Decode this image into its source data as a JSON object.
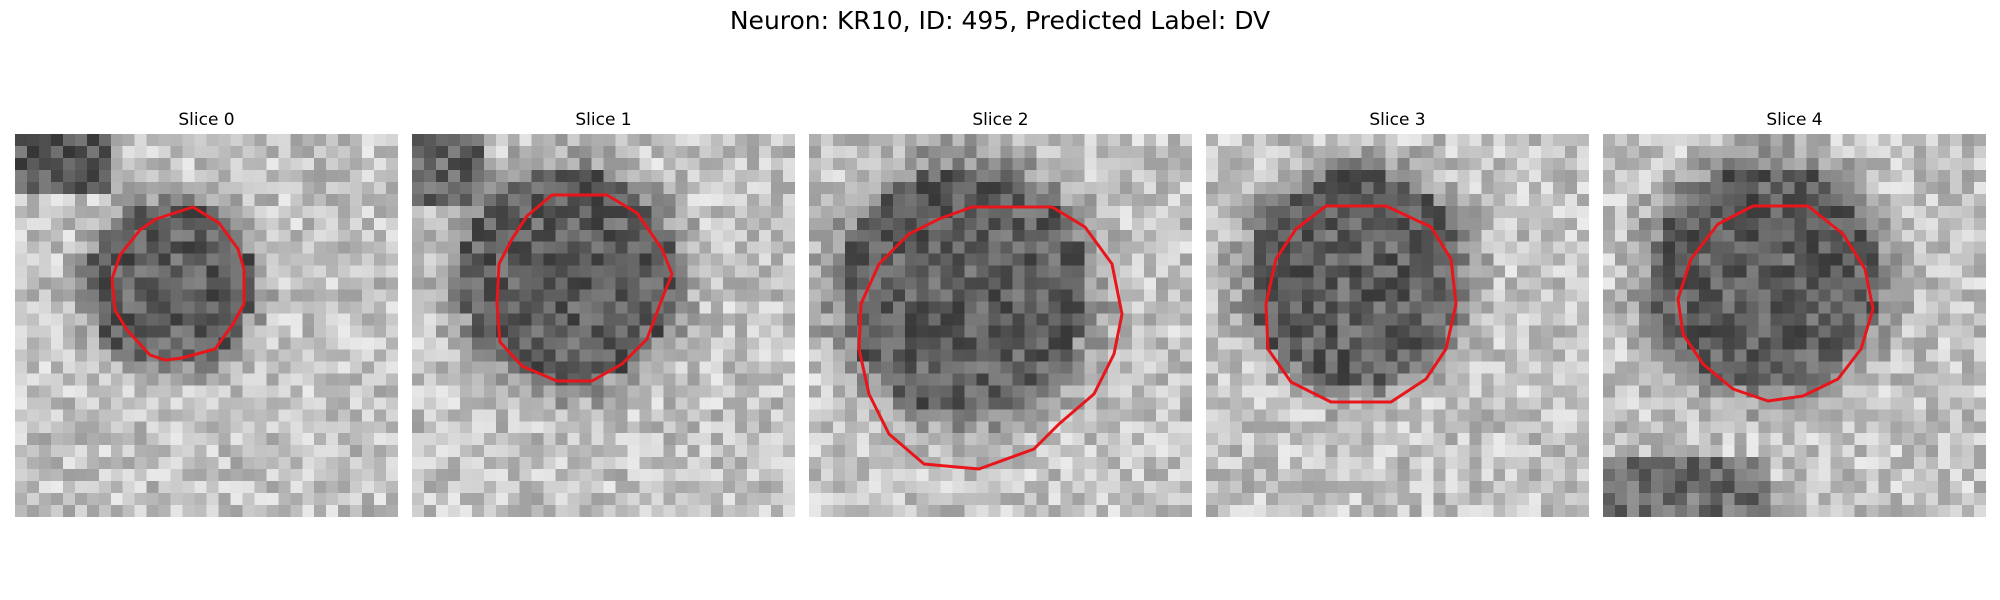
{
  "figure": {
    "title": "Neuron: KR10, ID: 495, Predicted Label: DV"
  },
  "slices": [
    {
      "title": "Slice 0"
    },
    {
      "title": "Slice 1"
    },
    {
      "title": "Slice 2"
    },
    {
      "title": "Slice 3"
    },
    {
      "title": "Slice 4"
    }
  ],
  "colors": {
    "contour": "#e8161b"
  }
}
